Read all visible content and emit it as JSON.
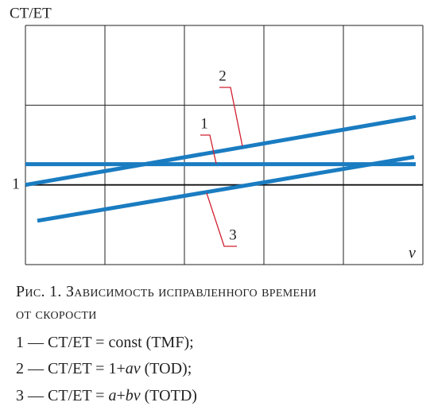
{
  "chart_data": {
    "type": "line",
    "ylabel": "CT/ET",
    "xlabel": "ν",
    "xlim": [
      0,
      5
    ],
    "ylim": [
      0,
      3
    ],
    "xgrid": [
      0,
      1,
      2,
      3,
      4,
      5
    ],
    "ygrid": [
      0,
      1,
      2,
      3
    ],
    "yticks": [
      1
    ],
    "series": [
      {
        "name": "1",
        "color": "#1a7cc1",
        "x": [
          0,
          4.91
        ],
        "values": [
          1.26,
          1.26
        ]
      },
      {
        "name": "2",
        "color": "#1a7cc1",
        "x": [
          0,
          4.91
        ],
        "values": [
          1.0,
          1.85
        ]
      },
      {
        "name": "3",
        "color": "#1a7cc1",
        "x": [
          0.15,
          4.89
        ],
        "values": [
          0.55,
          1.35
        ]
      }
    ]
  },
  "caption": {
    "title": [
      "Рис. 1. Зависимость исправленного времени",
      "от скорости"
    ],
    "items": [
      [
        "1 — CT/ET = const (TMF);"
      ],
      [
        "2 — CT/ET = 1+",
        "av",
        " (TOD);"
      ],
      [
        "3 — CT/ET = ",
        "a",
        "+",
        "bv",
        " (TOTD)"
      ]
    ]
  }
}
